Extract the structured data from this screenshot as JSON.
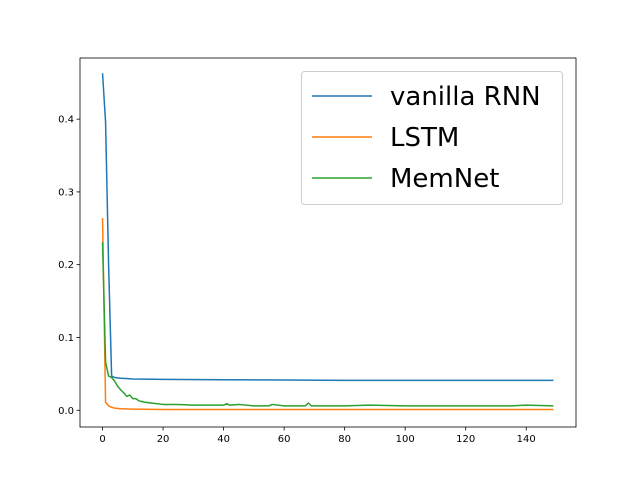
{
  "chart_data": {
    "type": "line",
    "title": "",
    "xlabel": "",
    "ylabel": "",
    "xlim": [
      -7.45,
      156.45
    ],
    "ylim": [
      -0.023,
      0.484
    ],
    "xticks": [
      0,
      20,
      40,
      60,
      80,
      100,
      120,
      140
    ],
    "xtick_labels": [
      "0",
      "20",
      "40",
      "60",
      "80",
      "100",
      "120",
      "140"
    ],
    "yticks": [
      0.0,
      0.1,
      0.2,
      0.3,
      0.4
    ],
    "ytick_labels": [
      "0.0",
      "0.1",
      "0.2",
      "0.3",
      "0.4"
    ],
    "grid": false,
    "legend_placement": "upper-right",
    "series": [
      {
        "name": "vanilla RNN",
        "color": "#1f77b4",
        "x": [
          0,
          1,
          2,
          3,
          4,
          6,
          10,
          20,
          40,
          60,
          80,
          100,
          120,
          149
        ],
        "y": [
          0.463,
          0.396,
          0.2,
          0.047,
          0.045,
          0.044,
          0.043,
          0.0425,
          0.042,
          0.0415,
          0.041,
          0.041,
          0.041,
          0.041
        ]
      },
      {
        "name": "LSTM",
        "color": "#ff7f0e",
        "x": [
          0,
          1,
          2,
          3,
          4,
          6,
          10,
          20,
          40,
          80,
          149
        ],
        "y": [
          0.264,
          0.011,
          0.006,
          0.004,
          0.003,
          0.002,
          0.0015,
          0.001,
          0.001,
          0.001,
          0.001
        ]
      },
      {
        "name": "MemNet",
        "color": "#2ca02c",
        "x": [
          0,
          1,
          2,
          3,
          4,
          5,
          6,
          7,
          8,
          9,
          10,
          11,
          12,
          14,
          16,
          20,
          25,
          30,
          40,
          41,
          42,
          45,
          50,
          55,
          56,
          60,
          67,
          68,
          69,
          80,
          88,
          100,
          110,
          120,
          135,
          140,
          149
        ],
        "y": [
          0.231,
          0.066,
          0.047,
          0.045,
          0.04,
          0.033,
          0.028,
          0.024,
          0.019,
          0.021,
          0.016,
          0.016,
          0.013,
          0.011,
          0.01,
          0.008,
          0.008,
          0.007,
          0.007,
          0.009,
          0.007,
          0.008,
          0.006,
          0.006,
          0.008,
          0.006,
          0.006,
          0.01,
          0.006,
          0.006,
          0.007,
          0.006,
          0.006,
          0.006,
          0.006,
          0.007,
          0.006
        ]
      }
    ]
  }
}
